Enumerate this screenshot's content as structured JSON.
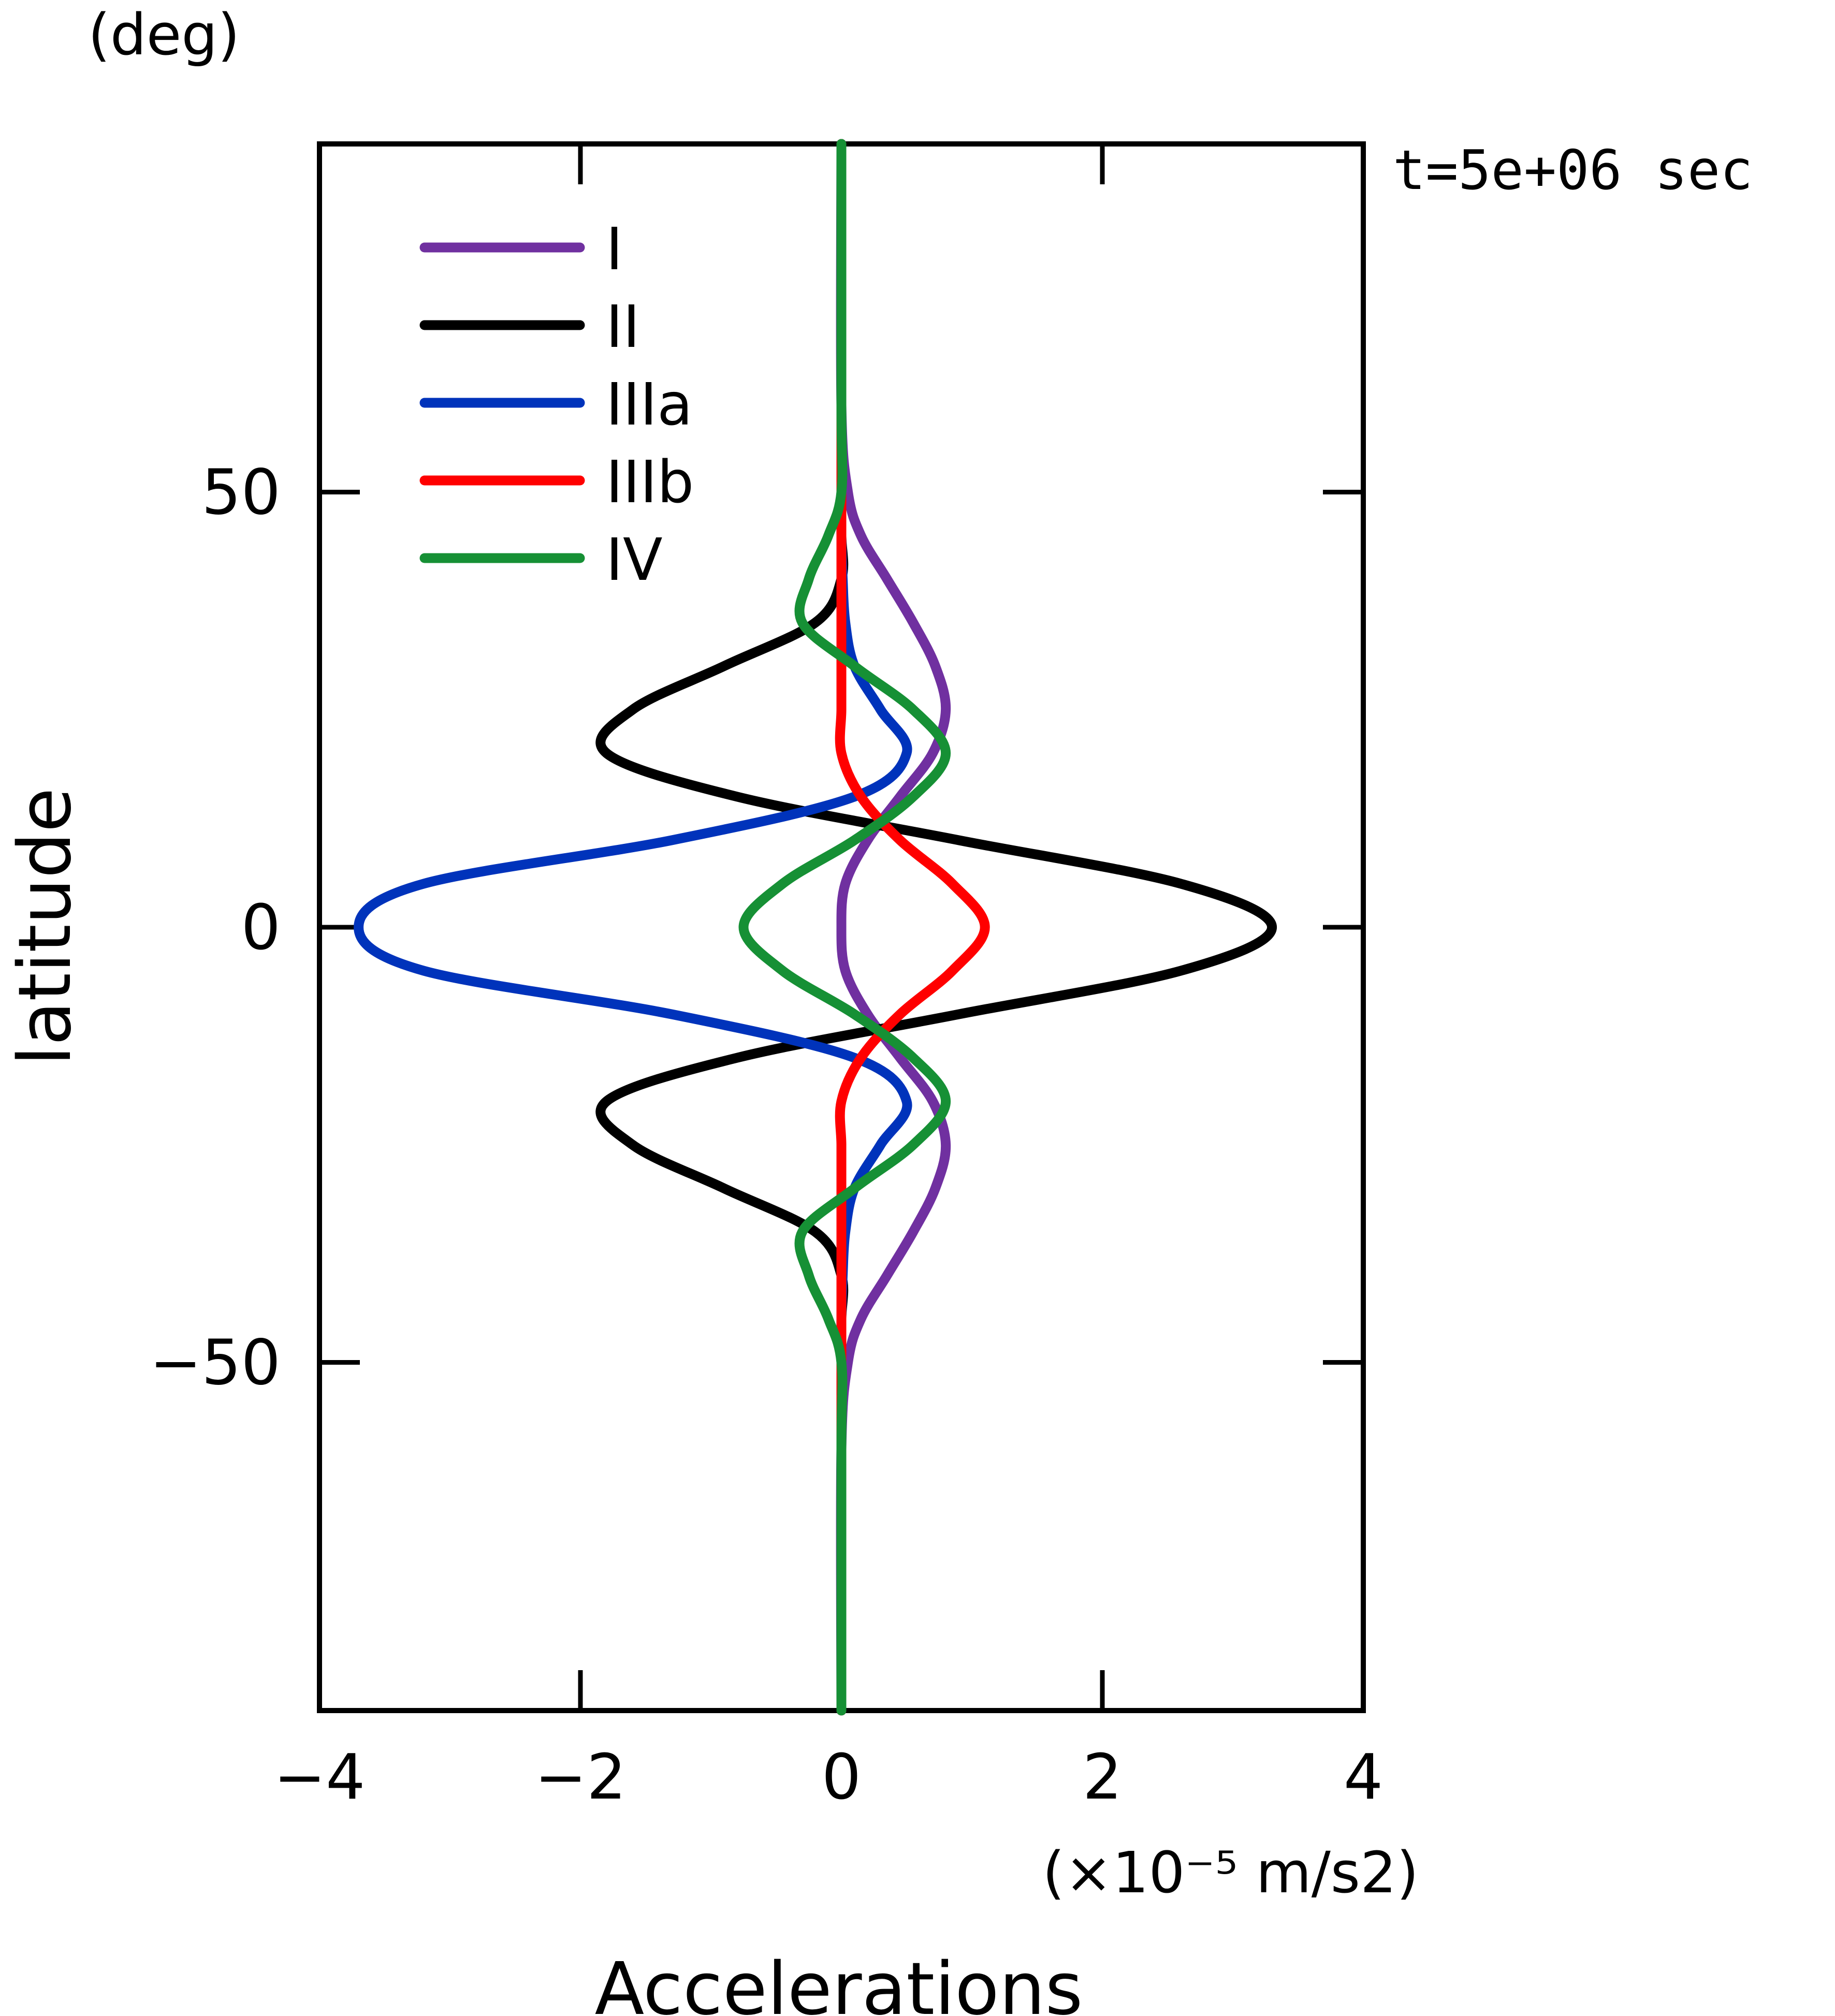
{
  "chart_data": {
    "type": "line",
    "title": "",
    "xlabel": "Accelerations",
    "x_unit": "(×10⁻⁵ m/s2)",
    "ylabel": "latitude",
    "y_unit": "(deg)",
    "annotation": "t=5e+06 sec",
    "xlim": [
      -4,
      4
    ],
    "ylim": [
      -90,
      90
    ],
    "x_ticks": [
      -4,
      -2,
      0,
      2,
      4
    ],
    "x_tick_labels": [
      "−4",
      "−2",
      "0",
      "2",
      "4"
    ],
    "y_ticks": [
      -50,
      0,
      50
    ],
    "y_tick_labels": [
      "−50",
      "0",
      "50"
    ],
    "legend_position": "top-left",
    "latitudes": [
      90,
      60,
      50,
      45,
      40,
      35,
      30,
      25,
      20,
      15,
      10,
      5,
      0,
      -5,
      -10,
      -15,
      -20,
      -25,
      -30,
      -35,
      -40,
      -45,
      -50,
      -60,
      -90
    ],
    "series": [
      {
        "name": "I",
        "color": "#7030a0",
        "values": [
          0,
          0,
          0.05,
          0.15,
          0.35,
          0.55,
          0.72,
          0.8,
          0.7,
          0.45,
          0.2,
          0.03,
          0,
          0.03,
          0.2,
          0.45,
          0.7,
          0.8,
          0.72,
          0.55,
          0.35,
          0.15,
          0.05,
          0,
          0
        ]
      },
      {
        "name": "II",
        "color": "#000000",
        "values": [
          0,
          0,
          0,
          0,
          0,
          -0.2,
          -0.9,
          -1.6,
          -1.8,
          -0.8,
          0.9,
          2.6,
          3.3,
          2.6,
          0.9,
          -0.8,
          -1.8,
          -1.6,
          -0.9,
          -0.2,
          0,
          0,
          0,
          0,
          0
        ]
      },
      {
        "name": "IIIa",
        "color": "#0033bb",
        "values": [
          0,
          0,
          0,
          0,
          0.01,
          0.03,
          0.1,
          0.3,
          0.5,
          0.1,
          -1.3,
          -3.2,
          -3.7,
          -3.2,
          -1.3,
          0.1,
          0.5,
          0.3,
          0.1,
          0.03,
          0.01,
          0,
          0,
          0,
          0
        ]
      },
      {
        "name": "IIIb",
        "color": "#ff0000",
        "values": [
          0,
          0,
          0,
          0,
          0,
          0,
          0,
          0,
          0,
          0.15,
          0.45,
          0.85,
          1.1,
          0.85,
          0.45,
          0.15,
          0,
          0,
          0,
          0,
          0,
          0,
          0,
          0,
          0
        ]
      },
      {
        "name": "IV",
        "color": "#169035",
        "values": [
          0,
          0,
          0,
          -0.1,
          -0.25,
          -0.3,
          0.1,
          0.55,
          0.8,
          0.55,
          0.1,
          -0.45,
          -0.75,
          -0.45,
          0.1,
          0.55,
          0.8,
          0.55,
          0.1,
          -0.3,
          -0.25,
          -0.1,
          0,
          0,
          0
        ]
      }
    ]
  }
}
